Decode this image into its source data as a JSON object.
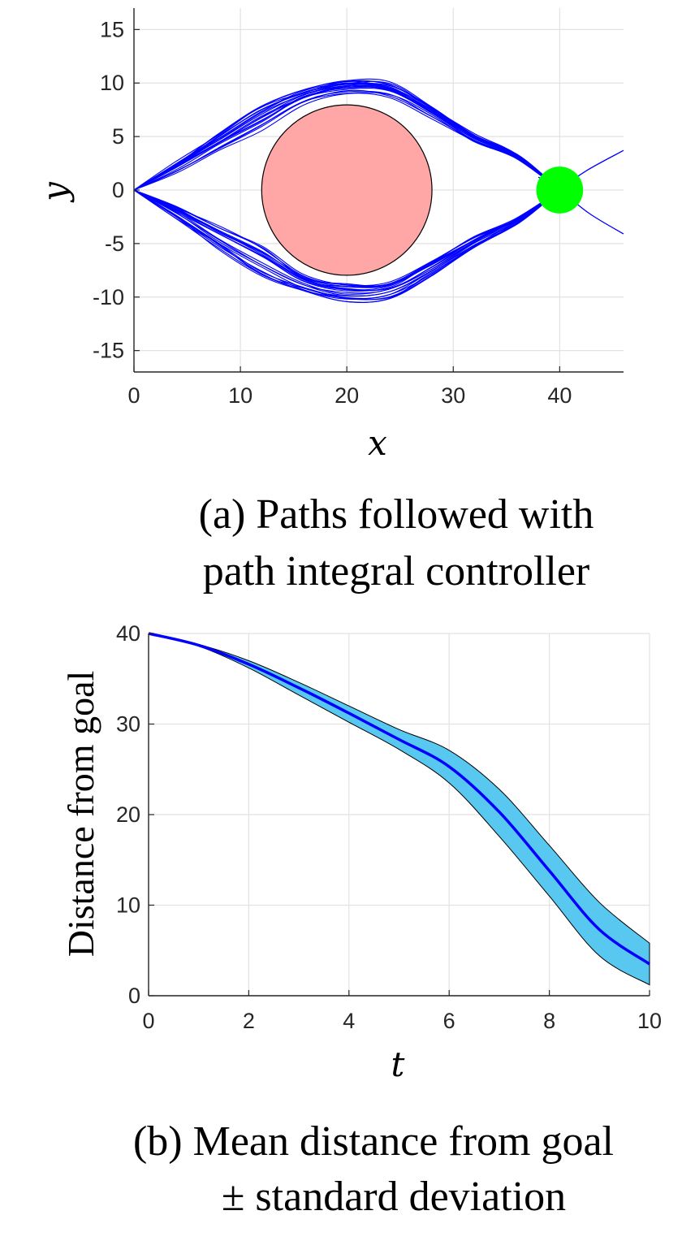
{
  "chart_data": [
    {
      "type": "line",
      "subtype": "trajectories",
      "xlabel": "x",
      "ylabel": "y",
      "xlim": [
        0,
        46
      ],
      "ylim": [
        -17,
        17
      ],
      "xticks": [
        0,
        10,
        20,
        30,
        40
      ],
      "xtick_labels": [
        "0",
        "10",
        "20",
        "30",
        "40"
      ],
      "yticks": [
        15,
        10,
        5,
        0,
        -5,
        -10,
        -15
      ],
      "ytick_labels": [
        "15",
        "10",
        "5",
        "0",
        "-5",
        "-10",
        "-15"
      ],
      "grid": true,
      "trajectory_color": "#0000ff",
      "trajectory_count": 40,
      "upper_path_template": [
        [
          0,
          0
        ],
        [
          4,
          2.3
        ],
        [
          8,
          4.8
        ],
        [
          12,
          7.2
        ],
        [
          16,
          9
        ],
        [
          20,
          9.9
        ],
        [
          24,
          9.6
        ],
        [
          28,
          7.5
        ],
        [
          32,
          5
        ],
        [
          36,
          3.2
        ],
        [
          40,
          0
        ]
      ],
      "lower_path_template": [
        [
          0,
          0
        ],
        [
          4,
          -2.3
        ],
        [
          8,
          -4.8
        ],
        [
          12,
          -7.2
        ],
        [
          16,
          -9
        ],
        [
          20,
          -9.9
        ],
        [
          24,
          -9.6
        ],
        [
          28,
          -7.5
        ],
        [
          32,
          -5
        ],
        [
          36,
          -3
        ],
        [
          40,
          0
        ]
      ],
      "overshoot_paths": [
        {
          "points": [
            [
              38.5,
              -1.5
            ],
            [
              40,
              0
            ],
            [
              42.5,
              1.8
            ],
            [
              46,
              3.7
            ]
          ]
        },
        {
          "points": [
            [
              38,
              1.2
            ],
            [
              40,
              0
            ],
            [
              42.8,
              -2.2
            ],
            [
              46,
              -4.1
            ]
          ]
        }
      ],
      "obstacle": {
        "cx": 20,
        "cy": 0,
        "r": 8,
        "color": "#ffa6a6"
      },
      "goal": {
        "cx": 40,
        "cy": 0,
        "r": 2.2,
        "color": "#00ff00"
      },
      "caption_lines": [
        "(a) Paths followed with",
        "path integral controller"
      ]
    },
    {
      "type": "area",
      "subtype": "mean-with-band",
      "xlabel": "t",
      "ylabel": "Distance from goal",
      "xlim": [
        0,
        10
      ],
      "ylim": [
        0,
        40
      ],
      "xticks": [
        0,
        2,
        4,
        6,
        8,
        10
      ],
      "xtick_labels": [
        "0",
        "2",
        "4",
        "6",
        "8",
        "10"
      ],
      "yticks": [
        0,
        10,
        20,
        30,
        40
      ],
      "ytick_labels": [
        "0",
        "10",
        "20",
        "30",
        "40"
      ],
      "grid": true,
      "mean_color": "#0000ff",
      "band_color": "#58c8f0",
      "series": [
        {
          "name": "mean",
          "x": [
            0,
            1,
            2,
            3,
            4,
            5,
            6,
            7,
            8,
            9,
            10
          ],
          "values": [
            40,
            38.7,
            36.6,
            34,
            31.2,
            28.3,
            25.3,
            20.3,
            13.8,
            7.3,
            3.5
          ]
        },
        {
          "name": "upper",
          "x": [
            0,
            1,
            2,
            3,
            4,
            5,
            6,
            7,
            8,
            9,
            10
          ],
          "values": [
            40,
            38.8,
            37,
            34.6,
            32,
            29.4,
            27.1,
            22.8,
            16.6,
            10.3,
            5.8
          ]
        },
        {
          "name": "lower",
          "x": [
            0,
            1,
            2,
            3,
            4,
            5,
            6,
            7,
            8,
            9,
            10
          ],
          "values": [
            40,
            38.6,
            36.2,
            33.2,
            30.2,
            27.2,
            23.5,
            17.6,
            11,
            4.4,
            1.2
          ]
        }
      ],
      "caption_lines": [
        "(b) Mean distance from goal",
        "± standard deviation"
      ]
    }
  ]
}
